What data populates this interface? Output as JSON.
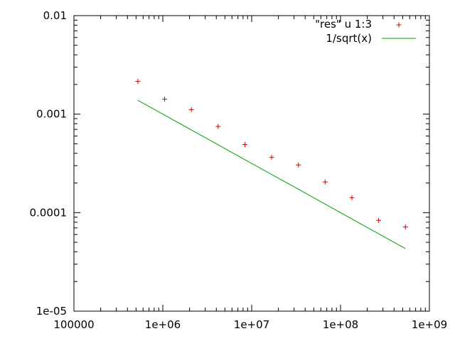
{
  "chart_data": {
    "type": "scatter",
    "x_scale": "log",
    "y_scale": "log",
    "xlim": [
      100000,
      1000000000
    ],
    "ylim": [
      1e-05,
      0.01
    ],
    "grid": false,
    "legend_position": "top-right",
    "x_ticks": [
      {
        "value": 100000,
        "label": "100000"
      },
      {
        "value": 1000000,
        "label": "1e+06"
      },
      {
        "value": 10000000,
        "label": "1e+07"
      },
      {
        "value": 100000000,
        "label": "1e+08"
      },
      {
        "value": 1000000000,
        "label": "1e+09"
      }
    ],
    "y_ticks": [
      {
        "value": 1e-05,
        "label": "1e-05"
      },
      {
        "value": 0.0001,
        "label": "0.0001"
      },
      {
        "value": 0.001,
        "label": "0.001"
      },
      {
        "value": 0.01,
        "label": "0.01"
      }
    ],
    "series": [
      {
        "name": "\"res\" u 1:3",
        "type": "scatter",
        "marker": "plus",
        "color": "#cc0000",
        "x": [
          524288,
          1048576,
          2097152,
          4194304,
          8388608,
          16777216,
          33554432,
          67108864,
          134217728,
          268435456,
          536870912
        ],
        "y": [
          0.00215,
          0.00142,
          0.00111,
          0.00075,
          0.00049,
          0.000365,
          0.000305,
          0.000205,
          0.000142,
          8.35e-05,
          7.15e-05
        ]
      },
      {
        "name": "1/sqrt(x)",
        "type": "line",
        "color": "#00a000",
        "x": [
          524288,
          1048576,
          2097152,
          4194304,
          8388608,
          16777216,
          33554432,
          67108864,
          134217728,
          268435456,
          536870912
        ],
        "y": [
          0.001381,
          0.000977,
          0.000691,
          0.000488,
          0.000345,
          0.000244,
          0.000173,
          0.000122,
          8.63e-05,
          6.1e-05,
          4.32e-05
        ]
      }
    ]
  }
}
